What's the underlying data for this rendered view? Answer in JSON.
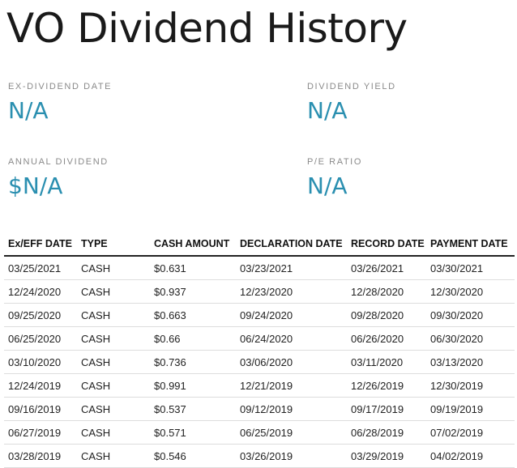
{
  "page": {
    "title": "VO Dividend History"
  },
  "stats": {
    "ex_dividend_date": {
      "label": "EX-DIVIDEND DATE",
      "value": "N/A"
    },
    "dividend_yield": {
      "label": "DIVIDEND YIELD",
      "value": "N/A"
    },
    "annual_dividend": {
      "label": "ANNUAL DIVIDEND",
      "value": "$N/A"
    },
    "pe_ratio": {
      "label": "P/E RATIO",
      "value": "N/A"
    }
  },
  "table": {
    "headers": [
      "Ex/EFF DATE",
      "TYPE",
      "CASH AMOUNT",
      "DECLARATION DATE",
      "RECORD DATE",
      "PAYMENT DATE"
    ],
    "rows": [
      [
        "03/25/2021",
        "CASH",
        "$0.631",
        "03/23/2021",
        "03/26/2021",
        "03/30/2021"
      ],
      [
        "12/24/2020",
        "CASH",
        "$0.937",
        "12/23/2020",
        "12/28/2020",
        "12/30/2020"
      ],
      [
        "09/25/2020",
        "CASH",
        "$0.663",
        "09/24/2020",
        "09/28/2020",
        "09/30/2020"
      ],
      [
        "06/25/2020",
        "CASH",
        "$0.66",
        "06/24/2020",
        "06/26/2020",
        "06/30/2020"
      ],
      [
        "03/10/2020",
        "CASH",
        "$0.736",
        "03/06/2020",
        "03/11/2020",
        "03/13/2020"
      ],
      [
        "12/24/2019",
        "CASH",
        "$0.991",
        "12/21/2019",
        "12/26/2019",
        "12/30/2019"
      ],
      [
        "09/16/2019",
        "CASH",
        "$0.537",
        "09/12/2019",
        "09/17/2019",
        "09/19/2019"
      ],
      [
        "06/27/2019",
        "CASH",
        "$0.571",
        "06/25/2019",
        "06/28/2019",
        "07/02/2019"
      ],
      [
        "03/28/2019",
        "CASH",
        "$0.546",
        "03/26/2019",
        "03/29/2019",
        "04/02/2019"
      ]
    ]
  },
  "colors": {
    "accent": "#2a8fb0",
    "label": "#8a8a8a",
    "text": "#222222",
    "row_divider": "#dddddd"
  }
}
